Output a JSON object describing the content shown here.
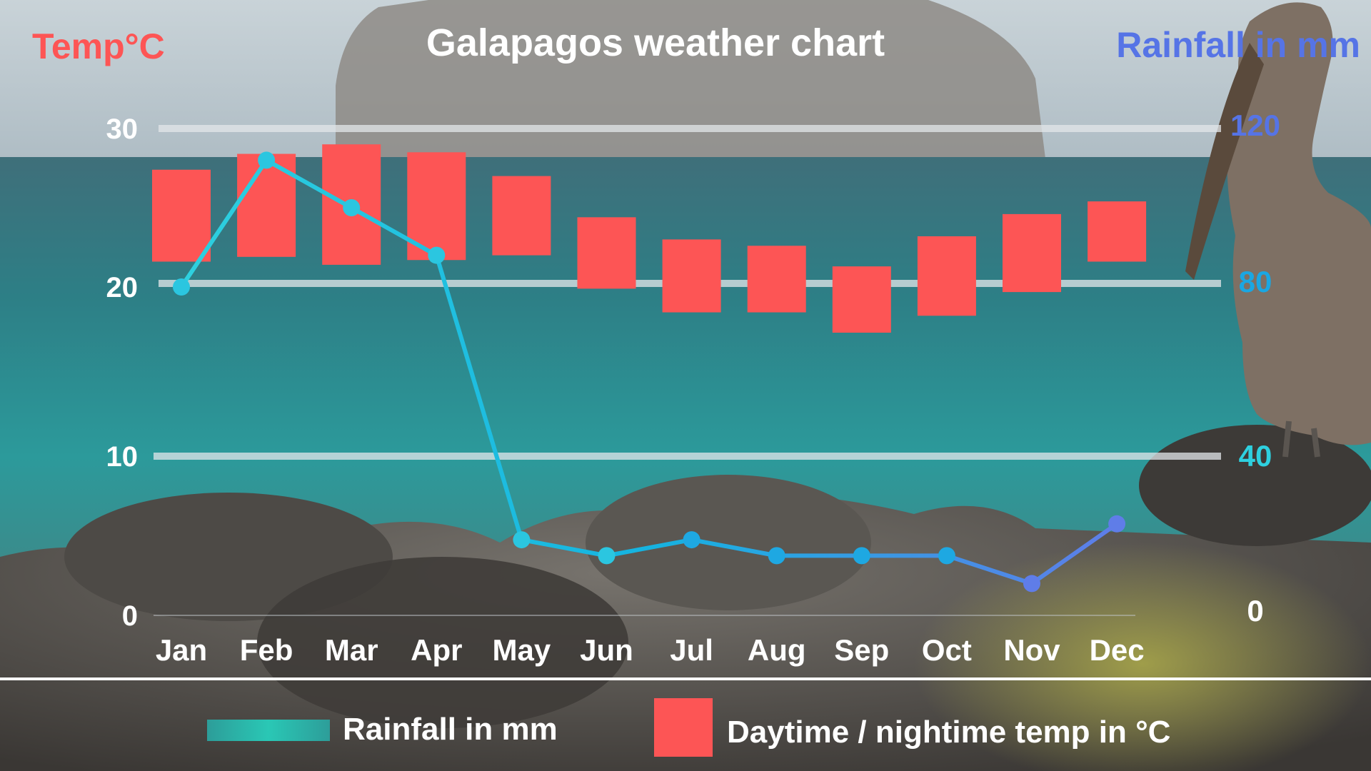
{
  "chart_data": {
    "type": "bar",
    "title": "Galapagos weather chart",
    "categories": [
      "Jan",
      "Feb",
      "Mar",
      "Apr",
      "May",
      "Jun",
      "Jul",
      "Aug",
      "Sep",
      "Oct",
      "Nov",
      "Dec"
    ],
    "y_left": {
      "label": "Temp°C",
      "range": [
        0,
        30
      ],
      "ticks": [
        "0",
        "10",
        "20",
        "30"
      ]
    },
    "y_right": {
      "label": "Rainfall in mm",
      "range": [
        0,
        120
      ],
      "ticks": [
        "0",
        "40",
        "80",
        "120"
      ]
    },
    "series": [
      {
        "name": "Daytime / nightime temp in °C",
        "kind": "floating-bar",
        "axis": "left",
        "color": "#fd5555",
        "high": [
          27.4,
          28.4,
          29.0,
          28.5,
          27.0,
          24.4,
          23.0,
          22.6,
          21.3,
          23.2,
          24.6,
          25.4
        ],
        "low": [
          21.6,
          21.9,
          21.4,
          21.7,
          22.0,
          19.9,
          18.5,
          18.5,
          17.3,
          18.3,
          19.7,
          21.6
        ]
      },
      {
        "name": "Rainfall in mm",
        "kind": "line",
        "axis": "right",
        "color": "#23c9e0",
        "values": [
          80,
          112,
          100,
          88,
          19,
          15,
          19,
          15,
          15,
          15,
          8,
          23
        ]
      }
    ],
    "grid": true,
    "legend": "bottom"
  },
  "colors": {
    "temp": "#fd5555",
    "rain_start": "#2ed0df",
    "rain_end": "#5f7de8",
    "right_axis_label": "#5674e6",
    "grid": "#d9dee2"
  }
}
